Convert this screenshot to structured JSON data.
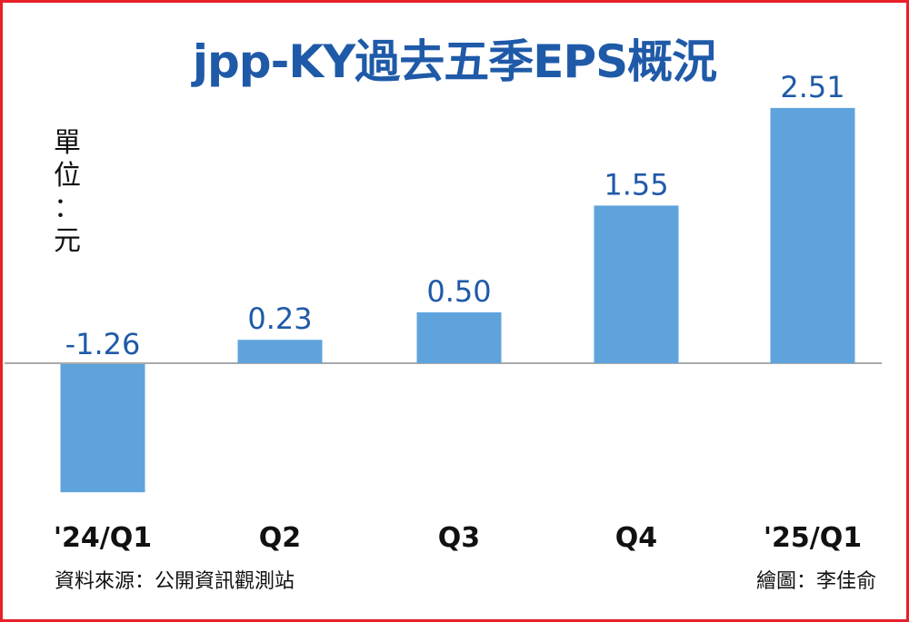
{
  "title": "jpp-KY過去五季EPS概況",
  "unit_label": "單\n位\n：\n元",
  "source": "資料來源：公開資訊觀測站",
  "credit": "繪圖：李佳俞",
  "colors": {
    "bar": "#5fa3dc",
    "title": "#1f5aa8",
    "border": "#e8202a",
    "axis": "#aaaaaa"
  },
  "chart_data": {
    "type": "bar",
    "categories": [
      "'24/Q1",
      "Q2",
      "Q3",
      "Q4",
      "'25/Q1"
    ],
    "values": [
      -1.26,
      0.23,
      0.5,
      1.55,
      2.51
    ],
    "value_labels": [
      "-1.26",
      "0.23",
      "0.50",
      "1.55",
      "2.51"
    ],
    "title": "jpp-KY過去五季EPS概況",
    "ylabel": "單位：元",
    "xlabel": "",
    "ylim": [
      -1.26,
      2.51
    ],
    "grid": false,
    "legend": "none"
  }
}
